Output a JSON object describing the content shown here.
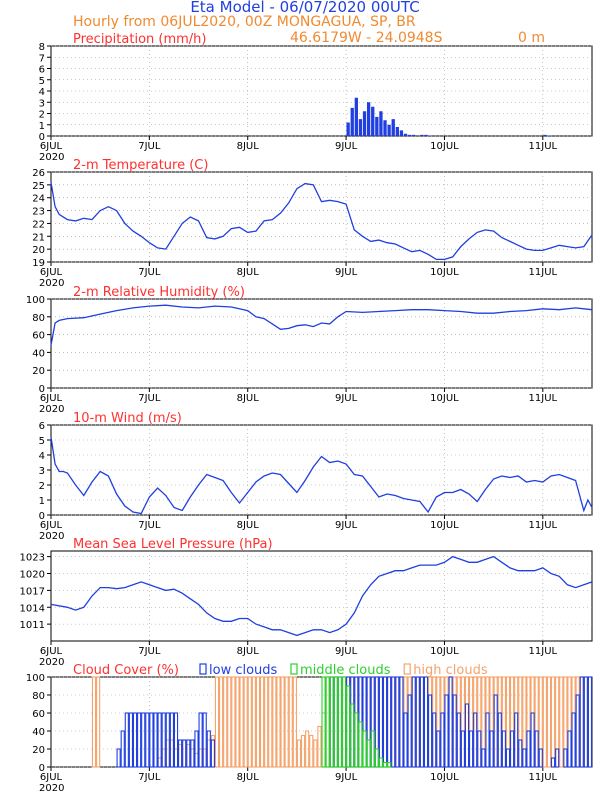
{
  "header": {
    "title": "Eta Model - 06/07/2020 00UTC",
    "subtitle": "Hourly from 06JUL2020, 00Z  MONGAGUA, SP, BR",
    "location": "46.6179W - 24.0948S",
    "elevation": "0   m",
    "title_color": "#1f3fe0",
    "subtitle_color": "#f08a30",
    "panel_title_color": "#ff3030"
  },
  "x_axis": {
    "tick_labels": [
      "6JUL",
      "7JUL",
      "8JUL",
      "9JUL",
      "10JUL",
      "11JUL"
    ],
    "year_label": "2020",
    "range_hours": [
      0,
      132
    ]
  },
  "chart_data": [
    {
      "type": "bar",
      "title": "Precipitation (mm/h)",
      "color": "#1f3fe0",
      "ylim": [
        0,
        8
      ],
      "yticks": [
        0,
        1,
        2,
        3,
        4,
        5,
        6,
        7,
        8
      ],
      "x": [
        72,
        73,
        74,
        75,
        76,
        77,
        78,
        79,
        80,
        81,
        82,
        83,
        84,
        85,
        86,
        87,
        88,
        90,
        91,
        92,
        120,
        121
      ],
      "values": [
        1.2,
        2.5,
        3.4,
        1.5,
        2.2,
        3.0,
        2.6,
        1.7,
        2.2,
        1.4,
        1.0,
        1.5,
        0.8,
        0.5,
        0.2,
        0.1,
        0.1,
        0.1,
        0.1,
        0.05,
        0.1,
        0.05
      ]
    },
    {
      "type": "line",
      "title": "2-m Temperature (C)",
      "color": "#1f3fe0",
      "ylim": [
        19,
        26
      ],
      "yticks": [
        19,
        20,
        21,
        22,
        23,
        24,
        25,
        26
      ],
      "x": [
        0,
        1,
        2,
        4,
        6,
        8,
        10,
        12,
        14,
        16,
        18,
        20,
        22,
        24,
        26,
        28,
        30,
        32,
        34,
        36,
        38,
        40,
        42,
        44,
        46,
        48,
        50,
        52,
        54,
        56,
        58,
        60,
        62,
        64,
        66,
        68,
        70,
        72,
        74,
        76,
        78,
        80,
        82,
        84,
        86,
        88,
        90,
        92,
        94,
        96,
        98,
        100,
        102,
        104,
        106,
        108,
        110,
        112,
        114,
        116,
        118,
        120,
        122,
        124,
        126,
        128,
        130,
        132
      ],
      "values": [
        25.2,
        23.3,
        22.7,
        22.3,
        22.2,
        22.4,
        22.3,
        23.0,
        23.3,
        23.0,
        22.0,
        21.4,
        21.0,
        20.5,
        20.1,
        20.0,
        21.0,
        22.0,
        22.5,
        22.2,
        20.9,
        20.8,
        21.0,
        21.6,
        21.7,
        21.3,
        21.4,
        22.2,
        22.3,
        22.8,
        23.6,
        24.7,
        25.1,
        25.0,
        23.7,
        23.8,
        23.7,
        23.5,
        21.5,
        21.0,
        20.6,
        20.7,
        20.5,
        20.4,
        20.1,
        19.8,
        19.9,
        19.6,
        19.2,
        19.2,
        19.4,
        20.2,
        20.8,
        21.3,
        21.5,
        21.4,
        20.9,
        20.6,
        20.3,
        20.0,
        19.9,
        19.9,
        20.1,
        20.3,
        20.2,
        20.1,
        20.2,
        21.1
      ]
    },
    {
      "type": "line",
      "title": "2-m Relative Humidity (%)",
      "color": "#1f3fe0",
      "ylim": [
        0,
        100
      ],
      "yticks": [
        0,
        20,
        40,
        60,
        80,
        100
      ],
      "x": [
        0,
        1,
        2,
        4,
        8,
        12,
        16,
        20,
        24,
        28,
        32,
        36,
        40,
        44,
        48,
        50,
        52,
        54,
        56,
        58,
        60,
        62,
        64,
        66,
        68,
        70,
        72,
        76,
        80,
        84,
        88,
        92,
        96,
        100,
        104,
        108,
        112,
        116,
        120,
        124,
        128,
        130,
        132
      ],
      "values": [
        48,
        73,
        76,
        78,
        79,
        83,
        87,
        90,
        92,
        93,
        91,
        90,
        92,
        91,
        87,
        80,
        78,
        72,
        66,
        67,
        70,
        71,
        69,
        73,
        72,
        80,
        86,
        85,
        86,
        87,
        88,
        88,
        87,
        86,
        84,
        84,
        86,
        87,
        89,
        88,
        90,
        89,
        88
      ]
    },
    {
      "type": "line",
      "title": "10-m Wind (m/s)",
      "color": "#1f3fe0",
      "ylim": [
        0,
        6
      ],
      "yticks": [
        0,
        1,
        2,
        3,
        4,
        5,
        6
      ],
      "x": [
        0,
        1,
        2,
        3,
        4,
        6,
        8,
        10,
        12,
        14,
        16,
        18,
        20,
        22,
        24,
        26,
        28,
        30,
        32,
        34,
        36,
        38,
        40,
        42,
        44,
        46,
        48,
        50,
        52,
        54,
        56,
        58,
        60,
        62,
        64,
        66,
        68,
        70,
        72,
        74,
        76,
        78,
        80,
        82,
        84,
        86,
        88,
        90,
        92,
        94,
        96,
        98,
        100,
        102,
        104,
        106,
        108,
        110,
        112,
        114,
        116,
        118,
        120,
        122,
        124,
        126,
        128,
        130,
        131,
        132
      ],
      "values": [
        5.2,
        3.4,
        2.9,
        2.9,
        2.8,
        2.0,
        1.3,
        2.2,
        2.9,
        2.6,
        1.4,
        0.6,
        0.2,
        0.1,
        1.2,
        1.8,
        1.3,
        0.5,
        0.3,
        1.2,
        2.0,
        2.7,
        2.5,
        2.3,
        1.5,
        0.8,
        1.5,
        2.2,
        2.6,
        2.8,
        2.7,
        2.1,
        1.5,
        2.3,
        3.2,
        3.9,
        3.5,
        3.6,
        3.4,
        2.7,
        2.6,
        1.9,
        1.2,
        1.4,
        1.3,
        1.1,
        1.0,
        0.9,
        0.2,
        1.2,
        1.5,
        1.5,
        1.7,
        1.4,
        0.9,
        1.7,
        2.4,
        2.6,
        2.5,
        2.6,
        2.2,
        2.3,
        2.2,
        2.6,
        2.7,
        2.5,
        2.3,
        0.3,
        1.0,
        0.5
      ]
    },
    {
      "type": "line",
      "title": "Mean Sea Level Pressure (hPa)",
      "color": "#1f3fe0",
      "ylim": [
        1008,
        1024
      ],
      "yticks": [
        1011,
        1014,
        1017,
        1020,
        1023
      ],
      "x": [
        0,
        4,
        6,
        8,
        10,
        12,
        14,
        16,
        18,
        20,
        22,
        24,
        26,
        28,
        30,
        32,
        34,
        36,
        38,
        40,
        42,
        44,
        46,
        48,
        50,
        52,
        54,
        56,
        58,
        60,
        62,
        64,
        66,
        68,
        70,
        72,
        74,
        76,
        78,
        80,
        82,
        84,
        86,
        88,
        90,
        92,
        94,
        96,
        98,
        100,
        102,
        104,
        106,
        108,
        110,
        112,
        114,
        116,
        118,
        120,
        122,
        124,
        126,
        128,
        130,
        132
      ],
      "values": [
        1014.5,
        1014,
        1013.5,
        1014,
        1016,
        1017.5,
        1017.5,
        1017.3,
        1017.5,
        1018,
        1018.5,
        1018,
        1017.5,
        1017,
        1017.2,
        1016.5,
        1015.5,
        1014.5,
        1013,
        1012,
        1011.5,
        1011.5,
        1012,
        1012,
        1011,
        1010.5,
        1010,
        1010,
        1009.5,
        1009,
        1009.5,
        1010,
        1010,
        1009.5,
        1010,
        1011,
        1013,
        1016,
        1018,
        1019.5,
        1020,
        1020.5,
        1020.5,
        1021,
        1021.5,
        1021.5,
        1021.5,
        1022,
        1023,
        1022.5,
        1022,
        1022,
        1022.5,
        1023,
        1022,
        1021,
        1020.5,
        1020.5,
        1020.5,
        1021,
        1020,
        1019.5,
        1018,
        1017.5,
        1018,
        1018.5
      ]
    },
    {
      "type": "bar",
      "title": "Cloud Cover (%)",
      "ylim": [
        0,
        100
      ],
      "yticks": [
        0,
        20,
        40,
        60,
        80,
        100
      ],
      "legend": [
        "low clouds",
        "middle clouds",
        "high clouds"
      ],
      "series": [
        {
          "name": "high clouds",
          "color": "#f5a36a",
          "x": [
            10,
            11,
            26,
            27,
            28,
            29,
            30,
            31,
            32,
            33,
            34,
            35,
            36,
            37,
            38,
            39,
            40,
            41,
            42,
            43,
            44,
            45,
            46,
            47,
            48,
            49,
            50,
            51,
            52,
            53,
            54,
            55,
            56,
            57,
            58,
            59,
            60,
            61,
            62,
            63,
            64,
            65,
            66,
            67,
            68,
            69,
            70,
            71,
            72,
            73,
            74,
            75,
            76,
            77,
            78,
            79,
            80,
            81,
            82,
            83,
            84,
            85,
            86,
            87,
            88,
            89,
            90,
            91,
            92,
            93,
            94,
            95,
            96,
            97,
            98,
            99,
            100,
            101,
            102,
            103,
            104,
            105,
            106,
            107,
            108,
            109,
            110,
            111,
            112,
            113,
            114,
            115,
            116,
            117,
            118,
            119,
            120,
            121,
            122,
            123,
            124,
            125,
            126,
            127,
            128,
            129,
            130,
            131
          ],
          "values": [
            100,
            100,
            10,
            20,
            30,
            30,
            20,
            25,
            30,
            25,
            20,
            15,
            20,
            20,
            30,
            35,
            100,
            100,
            100,
            100,
            100,
            100,
            100,
            100,
            100,
            100,
            100,
            100,
            100,
            100,
            100,
            100,
            100,
            100,
            100,
            100,
            30,
            35,
            40,
            35,
            30,
            45,
            60,
            100,
            100,
            100,
            100,
            100,
            100,
            100,
            100,
            100,
            100,
            100,
            100,
            100,
            100,
            100,
            100,
            100,
            100,
            100,
            100,
            100,
            100,
            100,
            100,
            100,
            100,
            100,
            100,
            100,
            100,
            100,
            100,
            100,
            100,
            100,
            100,
            100,
            100,
            100,
            100,
            100,
            100,
            100,
            100,
            100,
            100,
            100,
            100,
            100,
            100,
            100,
            100,
            100,
            100,
            100,
            100,
            100,
            100,
            100,
            100,
            100,
            100,
            100,
            100,
            100
          ]
        },
        {
          "name": "low clouds",
          "color": "#1f3fe0",
          "x": [
            16,
            17,
            18,
            19,
            20,
            21,
            22,
            23,
            24,
            25,
            26,
            27,
            28,
            29,
            30,
            31,
            32,
            33,
            34,
            35,
            36,
            37,
            38,
            39,
            68,
            69,
            70,
            71,
            72,
            73,
            74,
            75,
            76,
            77,
            78,
            79,
            80,
            81,
            82,
            83,
            84,
            85,
            86,
            87,
            88,
            89,
            90,
            91,
            92,
            93,
            94,
            95,
            96,
            97,
            98,
            99,
            100,
            101,
            102,
            103,
            104,
            105,
            106,
            107,
            108,
            109,
            110,
            111,
            112,
            113,
            114,
            115,
            116,
            117,
            118,
            119,
            120,
            121,
            122,
            123,
            124,
            125,
            126,
            127,
            128,
            129,
            130,
            131
          ],
          "values": [
            20,
            40,
            60,
            60,
            60,
            60,
            60,
            60,
            60,
            60,
            60,
            60,
            60,
            60,
            60,
            30,
            30,
            30,
            30,
            40,
            60,
            60,
            40,
            30,
            100,
            100,
            100,
            100,
            100,
            100,
            100,
            100,
            100,
            100,
            100,
            100,
            100,
            100,
            100,
            100,
            100,
            100,
            60,
            80,
            100,
            100,
            100,
            100,
            80,
            60,
            40,
            60,
            80,
            100,
            80,
            60,
            40,
            70,
            40,
            60,
            40,
            20,
            60,
            40,
            80,
            60,
            40,
            20,
            40,
            60,
            30,
            20,
            40,
            60,
            40,
            20,
            0,
            0,
            10,
            20,
            0,
            20,
            40,
            60,
            80,
            100,
            100,
            100
          ]
        },
        {
          "name": "middle clouds",
          "color": "#2bd12b",
          "x": [
            66,
            67,
            68,
            69,
            70,
            71,
            72,
            73,
            74,
            75,
            76,
            77,
            78,
            79,
            80,
            81,
            82
          ],
          "values": [
            100,
            100,
            100,
            100,
            100,
            100,
            90,
            70,
            60,
            50,
            40,
            30,
            40,
            20,
            10,
            5,
            5
          ]
        }
      ]
    }
  ]
}
